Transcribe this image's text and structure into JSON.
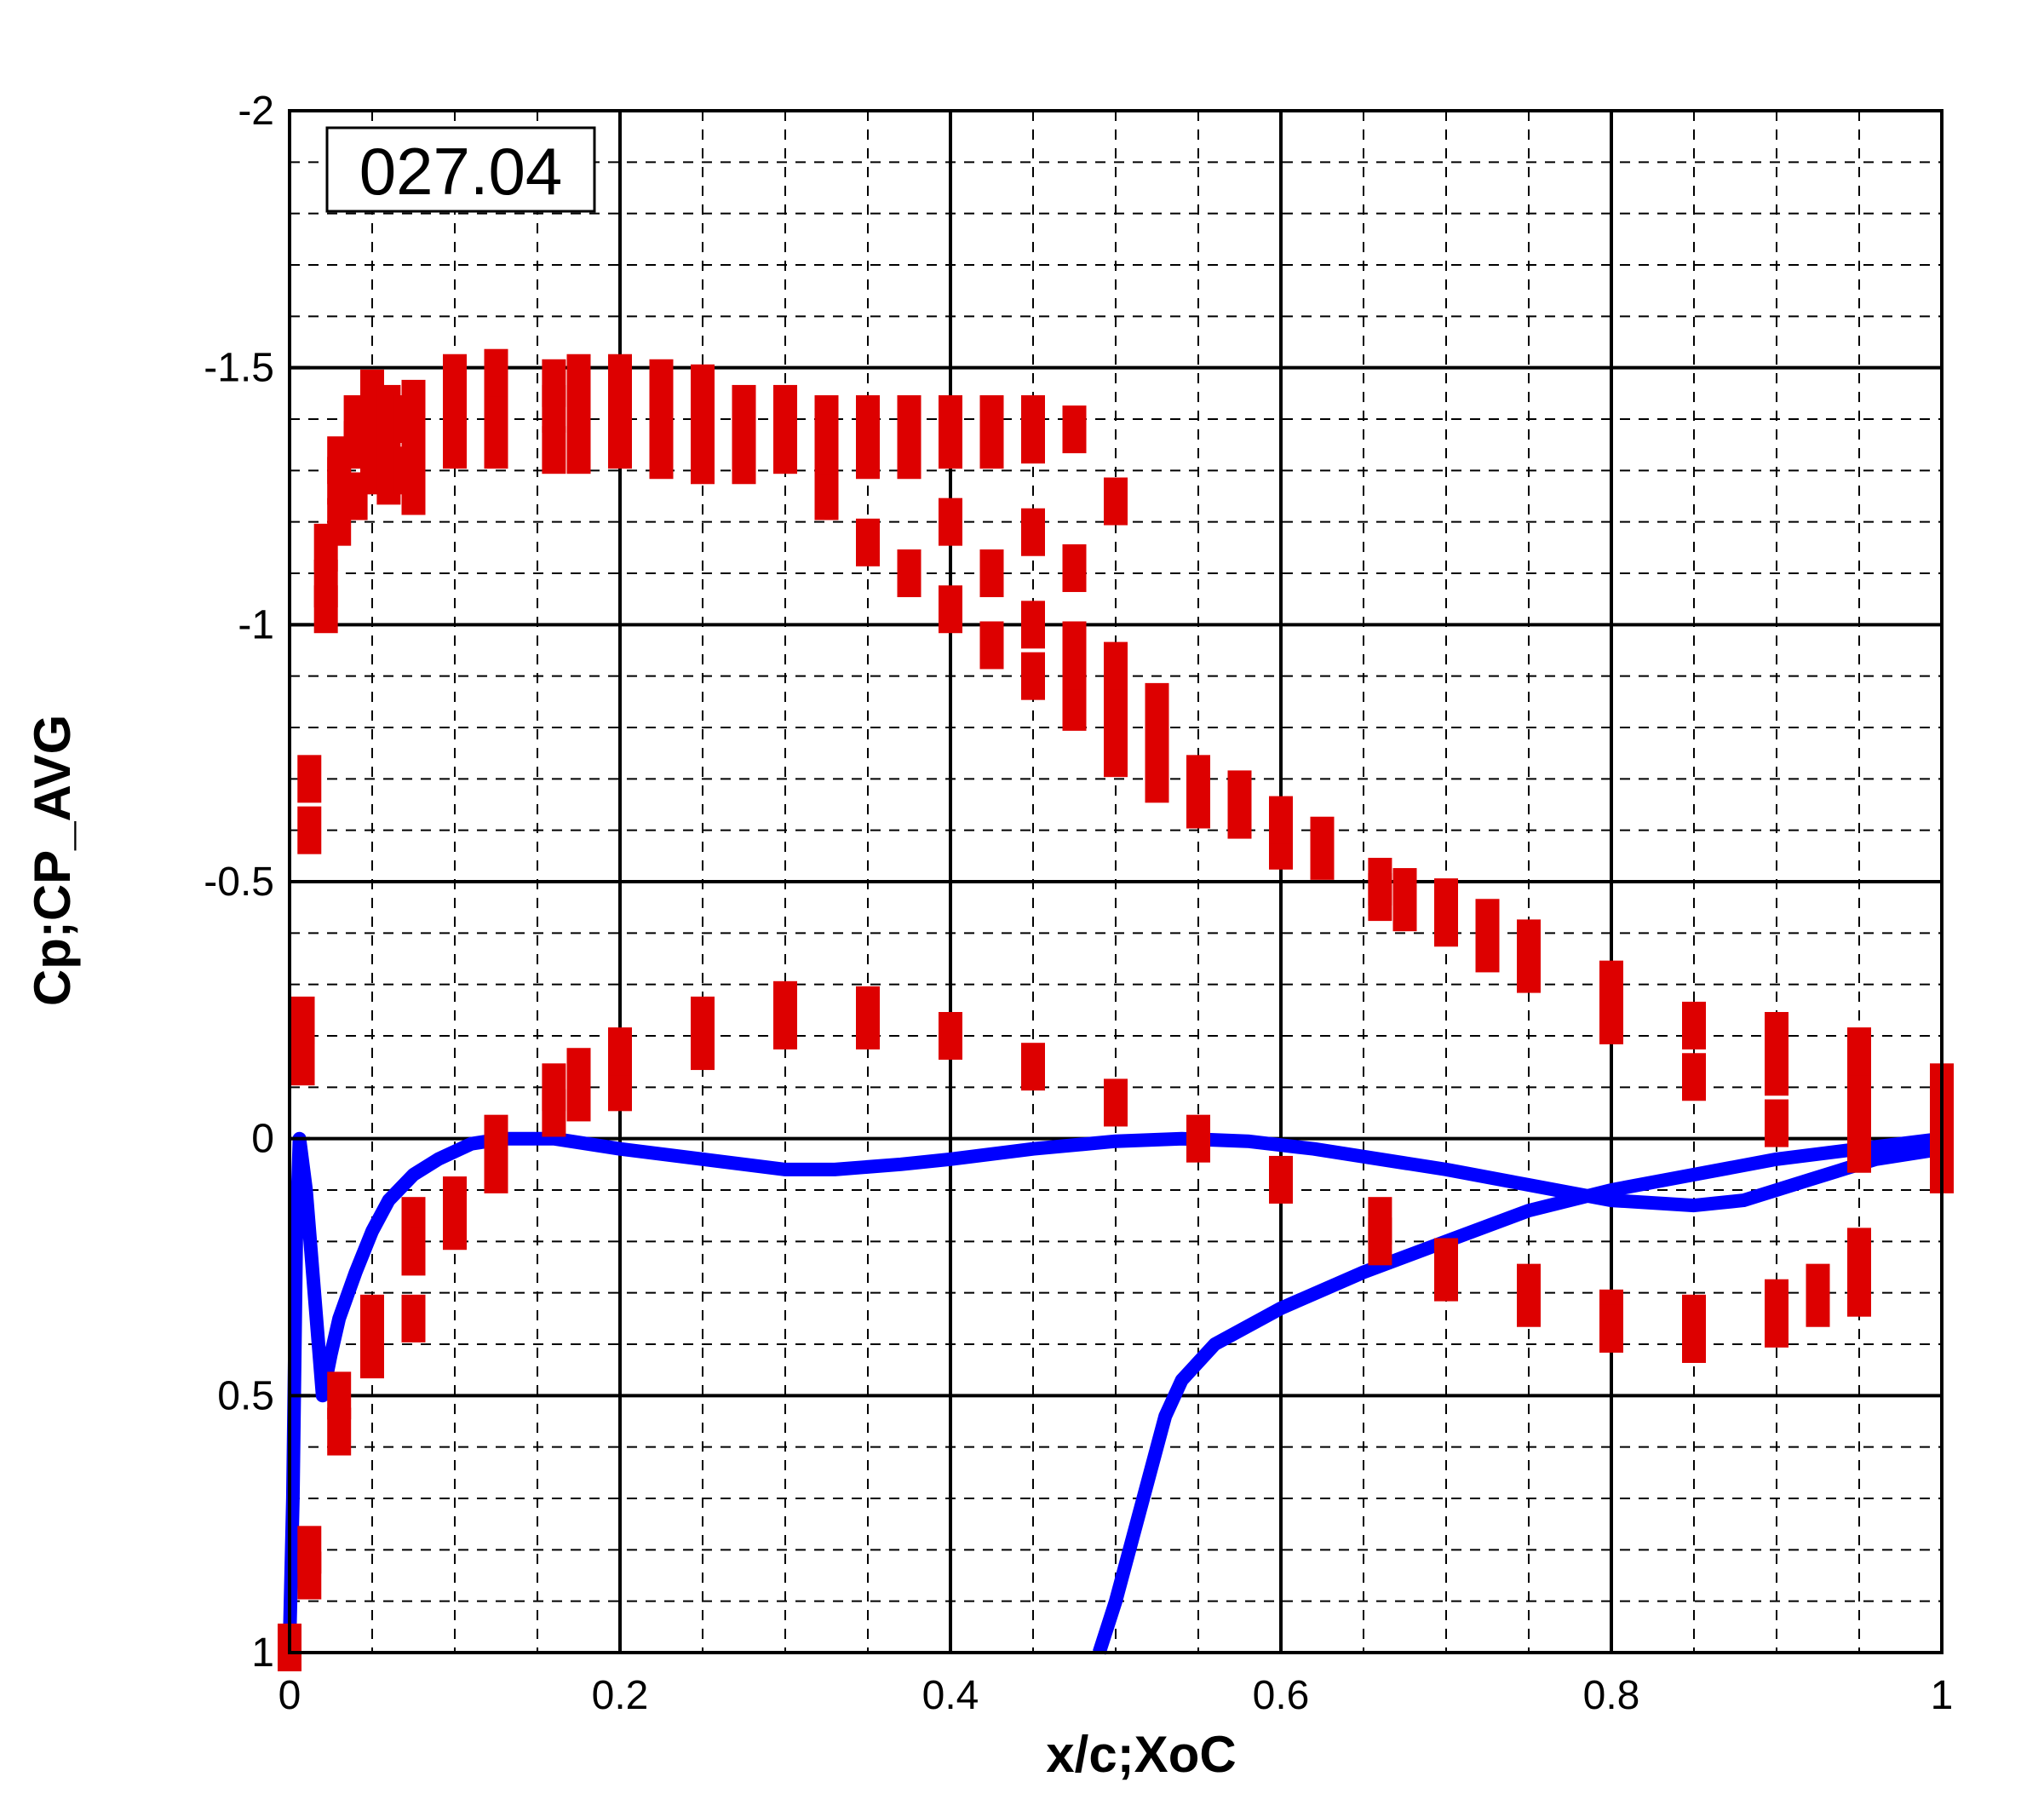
{
  "chart_data": {
    "type": "scatter",
    "title": "",
    "xlabel": "x/c;XoC",
    "ylabel": "Cp;CP_AVG",
    "annotation": "027.04",
    "xlim": [
      0,
      1
    ],
    "ylim": [
      1,
      -2
    ],
    "y_axis_inverted": true,
    "grid": true,
    "x_ticks": [
      0,
      0.2,
      0.4,
      0.6,
      0.8,
      1
    ],
    "x_tick_labels": [
      "0",
      "0.2",
      "0.4",
      "0.6",
      "0.8",
      "1"
    ],
    "y_ticks": [
      -2,
      -1.5,
      -1,
      -0.5,
      0,
      0.5,
      1
    ],
    "y_tick_labels": [
      "-2",
      "-1.5",
      "-1",
      "-0.5",
      "0",
      "0.5",
      "1"
    ],
    "colors": {
      "experimental": "#dd0000",
      "simulation": "#0000ff"
    },
    "series": [
      {
        "kind": "experimental-markers",
        "color": "#dd0000",
        "points": [
          {
            "x": 0.0,
            "y": 0.99
          },
          {
            "x": 0.008,
            "y": -0.23
          },
          {
            "x": 0.008,
            "y": -0.15
          },
          {
            "x": 0.012,
            "y": -0.6
          },
          {
            "x": 0.012,
            "y": -0.7
          },
          {
            "x": 0.012,
            "y": 0.8
          },
          {
            "x": 0.012,
            "y": 0.85
          },
          {
            "x": 0.022,
            "y": -1.03
          },
          {
            "x": 0.022,
            "y": -1.08
          },
          {
            "x": 0.022,
            "y": -1.15
          },
          {
            "x": 0.03,
            "y": -1.2
          },
          {
            "x": 0.03,
            "y": -1.28
          },
          {
            "x": 0.03,
            "y": -1.32
          },
          {
            "x": 0.04,
            "y": -1.25
          },
          {
            "x": 0.04,
            "y": -1.35
          },
          {
            "x": 0.04,
            "y": -1.4
          },
          {
            "x": 0.05,
            "y": -1.3
          },
          {
            "x": 0.05,
            "y": -1.38
          },
          {
            "x": 0.05,
            "y": -1.45
          },
          {
            "x": 0.06,
            "y": -1.28
          },
          {
            "x": 0.06,
            "y": -1.35
          },
          {
            "x": 0.06,
            "y": -1.42
          },
          {
            "x": 0.07,
            "y": -1.3
          },
          {
            "x": 0.07,
            "y": -1.4
          },
          {
            "x": 0.075,
            "y": -1.26
          },
          {
            "x": 0.075,
            "y": -1.35
          },
          {
            "x": 0.075,
            "y": -1.43
          },
          {
            "x": 0.1,
            "y": -1.35
          },
          {
            "x": 0.1,
            "y": -1.42
          },
          {
            "x": 0.1,
            "y": -1.48
          },
          {
            "x": 0.125,
            "y": -1.35
          },
          {
            "x": 0.125,
            "y": -1.42
          },
          {
            "x": 0.125,
            "y": -1.49
          },
          {
            "x": 0.16,
            "y": -1.34
          },
          {
            "x": 0.16,
            "y": -1.42
          },
          {
            "x": 0.16,
            "y": -1.47
          },
          {
            "x": 0.175,
            "y": -1.34
          },
          {
            "x": 0.175,
            "y": -1.42
          },
          {
            "x": 0.175,
            "y": -1.48
          },
          {
            "x": 0.2,
            "y": -1.35
          },
          {
            "x": 0.2,
            "y": -1.42
          },
          {
            "x": 0.2,
            "y": -1.48
          },
          {
            "x": 0.225,
            "y": -1.33
          },
          {
            "x": 0.225,
            "y": -1.42
          },
          {
            "x": 0.225,
            "y": -1.47
          },
          {
            "x": 0.25,
            "y": -1.32
          },
          {
            "x": 0.25,
            "y": -1.4
          },
          {
            "x": 0.25,
            "y": -1.46
          },
          {
            "x": 0.275,
            "y": -1.32
          },
          {
            "x": 0.275,
            "y": -1.38
          },
          {
            "x": 0.275,
            "y": -1.42
          },
          {
            "x": 0.3,
            "y": -1.34
          },
          {
            "x": 0.3,
            "y": -1.38
          },
          {
            "x": 0.3,
            "y": -1.42
          },
          {
            "x": 0.325,
            "y": -1.25
          },
          {
            "x": 0.325,
            "y": -1.34
          },
          {
            "x": 0.325,
            "y": -1.4
          },
          {
            "x": 0.35,
            "y": -1.16
          },
          {
            "x": 0.35,
            "y": -1.33
          },
          {
            "x": 0.35,
            "y": -1.4
          },
          {
            "x": 0.375,
            "y": -1.1
          },
          {
            "x": 0.375,
            "y": -1.33
          },
          {
            "x": 0.375,
            "y": -1.4
          },
          {
            "x": 0.4,
            "y": -1.03
          },
          {
            "x": 0.4,
            "y": -1.2
          },
          {
            "x": 0.4,
            "y": -1.35
          },
          {
            "x": 0.4,
            "y": -1.4
          },
          {
            "x": 0.425,
            "y": -0.96
          },
          {
            "x": 0.425,
            "y": -1.1
          },
          {
            "x": 0.425,
            "y": -1.35
          },
          {
            "x": 0.425,
            "y": -1.4
          },
          {
            "x": 0.45,
            "y": -0.9
          },
          {
            "x": 0.45,
            "y": -1.0
          },
          {
            "x": 0.45,
            "y": -1.18
          },
          {
            "x": 0.45,
            "y": -1.36
          },
          {
            "x": 0.45,
            "y": -1.4
          },
          {
            "x": 0.475,
            "y": -0.84
          },
          {
            "x": 0.475,
            "y": -0.92
          },
          {
            "x": 0.475,
            "y": -0.96
          },
          {
            "x": 0.475,
            "y": -1.11
          },
          {
            "x": 0.475,
            "y": -1.38
          },
          {
            "x": 0.5,
            "y": -0.75
          },
          {
            "x": 0.5,
            "y": -0.8
          },
          {
            "x": 0.5,
            "y": -0.84
          },
          {
            "x": 0.5,
            "y": -0.92
          },
          {
            "x": 0.5,
            "y": -1.24
          },
          {
            "x": 0.525,
            "y": -0.7
          },
          {
            "x": 0.525,
            "y": -0.76
          },
          {
            "x": 0.525,
            "y": -0.84
          },
          {
            "x": 0.55,
            "y": -0.65
          },
          {
            "x": 0.55,
            "y": -0.7
          },
          {
            "x": 0.575,
            "y": -0.63
          },
          {
            "x": 0.575,
            "y": -0.67
          },
          {
            "x": 0.6,
            "y": -0.57
          },
          {
            "x": 0.6,
            "y": -0.62
          },
          {
            "x": 0.625,
            "y": -0.55
          },
          {
            "x": 0.625,
            "y": -0.58
          },
          {
            "x": 0.66,
            "y": -0.47
          },
          {
            "x": 0.66,
            "y": -0.5
          },
          {
            "x": 0.675,
            "y": -0.45
          },
          {
            "x": 0.675,
            "y": -0.48
          },
          {
            "x": 0.7,
            "y": -0.42
          },
          {
            "x": 0.7,
            "y": -0.46
          },
          {
            "x": 0.725,
            "y": -0.37
          },
          {
            "x": 0.725,
            "y": -0.42
          },
          {
            "x": 0.75,
            "y": -0.33
          },
          {
            "x": 0.75,
            "y": -0.38
          },
          {
            "x": 0.8,
            "y": -0.23
          },
          {
            "x": 0.8,
            "y": -0.3
          },
          {
            "x": 0.85,
            "y": -0.12
          },
          {
            "x": 0.85,
            "y": -0.22
          },
          {
            "x": 0.9,
            "y": -0.03
          },
          {
            "x": 0.9,
            "y": -0.13
          },
          {
            "x": 0.9,
            "y": -0.2
          },
          {
            "x": 0.95,
            "y": 0.02
          },
          {
            "x": 0.95,
            "y": -0.06
          },
          {
            "x": 0.95,
            "y": -0.12
          },
          {
            "x": 0.95,
            "y": -0.17
          },
          {
            "x": 1.0,
            "y": 0.06
          },
          {
            "x": 1.0,
            "y": -0.03
          },
          {
            "x": 1.0,
            "y": -0.1
          },
          {
            "x": 0.16,
            "y": -0.05
          },
          {
            "x": 0.16,
            "y": -0.1
          },
          {
            "x": 0.175,
            "y": -0.08
          },
          {
            "x": 0.175,
            "y": -0.13
          },
          {
            "x": 0.2,
            "y": -0.1
          },
          {
            "x": 0.2,
            "y": -0.17
          },
          {
            "x": 0.25,
            "y": -0.18
          },
          {
            "x": 0.25,
            "y": -0.23
          },
          {
            "x": 0.3,
            "y": -0.22
          },
          {
            "x": 0.3,
            "y": -0.26
          },
          {
            "x": 0.35,
            "y": -0.22
          },
          {
            "x": 0.35,
            "y": -0.25
          },
          {
            "x": 0.4,
            "y": -0.2
          },
          {
            "x": 0.45,
            "y": -0.14
          },
          {
            "x": 0.5,
            "y": -0.07
          },
          {
            "x": 0.55,
            "y": 0.0
          },
          {
            "x": 0.6,
            "y": 0.08
          },
          {
            "x": 0.66,
            "y": 0.16
          },
          {
            "x": 0.66,
            "y": 0.2
          },
          {
            "x": 0.7,
            "y": 0.24
          },
          {
            "x": 0.7,
            "y": 0.27
          },
          {
            "x": 0.75,
            "y": 0.29
          },
          {
            "x": 0.75,
            "y": 0.32
          },
          {
            "x": 0.8,
            "y": 0.34
          },
          {
            "x": 0.8,
            "y": 0.37
          },
          {
            "x": 0.85,
            "y": 0.35
          },
          {
            "x": 0.85,
            "y": 0.39
          },
          {
            "x": 0.9,
            "y": 0.32
          },
          {
            "x": 0.9,
            "y": 0.36
          },
          {
            "x": 0.925,
            "y": 0.29
          },
          {
            "x": 0.925,
            "y": 0.32
          },
          {
            "x": 0.95,
            "y": 0.22
          },
          {
            "x": 0.95,
            "y": 0.26
          },
          {
            "x": 0.95,
            "y": 0.3
          },
          {
            "x": 0.125,
            "y": 0.0
          },
          {
            "x": 0.125,
            "y": 0.06
          },
          {
            "x": 0.1,
            "y": 0.12
          },
          {
            "x": 0.1,
            "y": 0.17
          },
          {
            "x": 0.075,
            "y": 0.16
          },
          {
            "x": 0.075,
            "y": 0.22
          },
          {
            "x": 0.075,
            "y": 0.35
          },
          {
            "x": 0.05,
            "y": 0.35
          },
          {
            "x": 0.05,
            "y": 0.42
          },
          {
            "x": 0.03,
            "y": 0.5
          },
          {
            "x": 0.03,
            "y": 0.57
          }
        ]
      },
      {
        "kind": "simulation-upper",
        "color": "#0000ff",
        "points": [
          {
            "x": 0.0,
            "y": 0.98
          },
          {
            "x": 0.002,
            "y": 0.7
          },
          {
            "x": 0.004,
            "y": 0.2
          },
          {
            "x": 0.006,
            "y": 0.0
          },
          {
            "x": 0.01,
            "y": 0.1
          },
          {
            "x": 0.015,
            "y": 0.3
          },
          {
            "x": 0.02,
            "y": 0.5
          },
          {
            "x": 0.025,
            "y": 0.42
          },
          {
            "x": 0.03,
            "y": 0.35
          },
          {
            "x": 0.04,
            "y": 0.26
          },
          {
            "x": 0.05,
            "y": 0.18
          },
          {
            "x": 0.06,
            "y": 0.12
          },
          {
            "x": 0.075,
            "y": 0.07
          },
          {
            "x": 0.09,
            "y": 0.04
          },
          {
            "x": 0.11,
            "y": 0.01
          },
          {
            "x": 0.13,
            "y": 0.0
          },
          {
            "x": 0.16,
            "y": 0.0
          },
          {
            "x": 0.2,
            "y": 0.02
          },
          {
            "x": 0.25,
            "y": 0.04
          },
          {
            "x": 0.3,
            "y": 0.06
          },
          {
            "x": 0.33,
            "y": 0.06
          },
          {
            "x": 0.37,
            "y": 0.05
          },
          {
            "x": 0.4,
            "y": 0.04
          },
          {
            "x": 0.45,
            "y": 0.02
          },
          {
            "x": 0.5,
            "y": 0.005
          },
          {
            "x": 0.54,
            "y": 0.0
          },
          {
            "x": 0.58,
            "y": 0.005
          },
          {
            "x": 0.62,
            "y": 0.02
          },
          {
            "x": 0.66,
            "y": 0.04
          },
          {
            "x": 0.7,
            "y": 0.06
          },
          {
            "x": 0.75,
            "y": 0.09
          },
          {
            "x": 0.8,
            "y": 0.12
          },
          {
            "x": 0.85,
            "y": 0.13
          },
          {
            "x": 0.88,
            "y": 0.12
          },
          {
            "x": 0.92,
            "y": 0.08
          },
          {
            "x": 0.96,
            "y": 0.04
          },
          {
            "x": 1.0,
            "y": 0.02
          }
        ]
      },
      {
        "kind": "simulation-lower",
        "color": "#0000ff",
        "points": [
          {
            "x": 0.49,
            "y": 1.0
          },
          {
            "x": 0.5,
            "y": 0.9
          },
          {
            "x": 0.51,
            "y": 0.78
          },
          {
            "x": 0.52,
            "y": 0.66
          },
          {
            "x": 0.53,
            "y": 0.54
          },
          {
            "x": 0.54,
            "y": 0.47
          },
          {
            "x": 0.56,
            "y": 0.4
          },
          {
            "x": 0.6,
            "y": 0.33
          },
          {
            "x": 0.65,
            "y": 0.26
          },
          {
            "x": 0.7,
            "y": 0.2
          },
          {
            "x": 0.75,
            "y": 0.14
          },
          {
            "x": 0.8,
            "y": 0.1
          },
          {
            "x": 0.85,
            "y": 0.07
          },
          {
            "x": 0.9,
            "y": 0.04
          },
          {
            "x": 0.95,
            "y": 0.02
          },
          {
            "x": 1.0,
            "y": 0.0
          }
        ]
      }
    ]
  }
}
